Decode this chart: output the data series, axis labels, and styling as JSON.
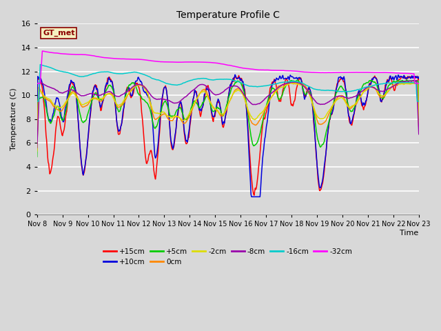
{
  "title": "Temperature Profile C",
  "xlabel": "Time",
  "ylabel": "Temperature (C)",
  "ylim": [
    0,
    16
  ],
  "xlim": [
    0,
    15
  ],
  "bg_color": "#d8d8d8",
  "grid_color": "#ffffff",
  "series": [
    {
      "label": "+15cm",
      "color": "#ff0000"
    },
    {
      "label": "+10cm",
      "color": "#0000dd"
    },
    {
      "label": "+5cm",
      "color": "#00cc00"
    },
    {
      "label": "0cm",
      "color": "#ff8800"
    },
    {
      "label": "-2cm",
      "color": "#dddd00"
    },
    {
      "label": "-8cm",
      "color": "#9900aa"
    },
    {
      "label": "-16cm",
      "color": "#00cccc"
    },
    {
      "label": "-32cm",
      "color": "#ff00ff"
    }
  ],
  "xtick_labels": [
    "Nov 8",
    "Nov 9",
    "Nov 10",
    "Nov 11",
    "Nov 12",
    "Nov 13",
    "Nov 14",
    "Nov 15",
    "Nov 16",
    "Nov 17",
    "Nov 18",
    "Nov 19",
    "Nov 20",
    "Nov 21",
    "Nov 22",
    "Nov 23"
  ],
  "gt_label": "GT_met",
  "gt_box_color": "#f5f0c0",
  "gt_box_edge": "#8b0000"
}
